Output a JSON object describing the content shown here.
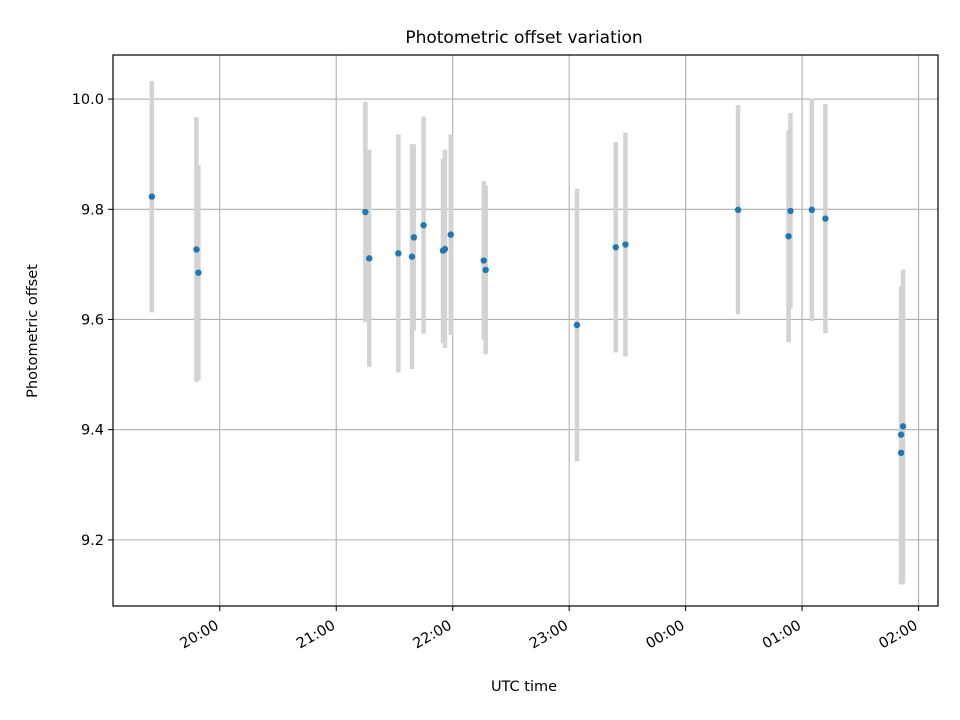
{
  "chart_data": {
    "type": "scatter",
    "title": "Photometric offset variation",
    "xlabel": "UTC time",
    "ylabel": "Photometric offset",
    "x_ticks": [
      "20:00",
      "21:00",
      "22:00",
      "23:00",
      "00:00",
      "01:00",
      "02:00"
    ],
    "y_ticks": [
      "9.2",
      "9.4",
      "9.6",
      "9.8",
      "10.0"
    ],
    "xlim": [
      "19:05",
      "02:10"
    ],
    "ylim": [
      9.08,
      10.08
    ],
    "grid": true,
    "marker_color": "#1f77b4",
    "errorbar_color": "#d3d3d3",
    "points": [
      {
        "t": "19:25",
        "y": 9.823,
        "err": 0.21
      },
      {
        "t": "19:48",
        "y": 9.727,
        "err": 0.24
      },
      {
        "t": "19:49",
        "y": 9.685,
        "err": 0.195
      },
      {
        "t": "21:15",
        "y": 9.795,
        "err": 0.2
      },
      {
        "t": "21:17",
        "y": 9.711,
        "err": 0.197
      },
      {
        "t": "21:32",
        "y": 9.72,
        "err": 0.216
      },
      {
        "t": "21:39",
        "y": 9.714,
        "err": 0.204
      },
      {
        "t": "21:40",
        "y": 9.749,
        "err": 0.169
      },
      {
        "t": "21:45",
        "y": 9.771,
        "err": 0.197
      },
      {
        "t": "21:55",
        "y": 9.725,
        "err": 0.167
      },
      {
        "t": "21:56",
        "y": 9.728,
        "err": 0.18
      },
      {
        "t": "21:59",
        "y": 9.754,
        "err": 0.182
      },
      {
        "t": "22:16",
        "y": 9.707,
        "err": 0.144
      },
      {
        "t": "22:17",
        "y": 9.69,
        "err": 0.153
      },
      {
        "t": "23:04",
        "y": 9.59,
        "err": 0.247
      },
      {
        "t": "23:24",
        "y": 9.731,
        "err": 0.191
      },
      {
        "t": "23:29",
        "y": 9.736,
        "err": 0.203
      },
      {
        "t": "00:27",
        "y": 9.799,
        "err": 0.19
      },
      {
        "t": "00:53",
        "y": 9.751,
        "err": 0.192
      },
      {
        "t": "00:54",
        "y": 9.797,
        "err": 0.178
      },
      {
        "t": "01:05",
        "y": 9.799,
        "err": 0.202
      },
      {
        "t": "01:12",
        "y": 9.783,
        "err": 0.208
      },
      {
        "t": "01:51",
        "y": 9.358,
        "err": 0.239
      },
      {
        "t": "01:51",
        "y": 9.391,
        "err": 0.269
      },
      {
        "t": "01:52",
        "y": 9.406,
        "err": 0.285
      }
    ]
  }
}
